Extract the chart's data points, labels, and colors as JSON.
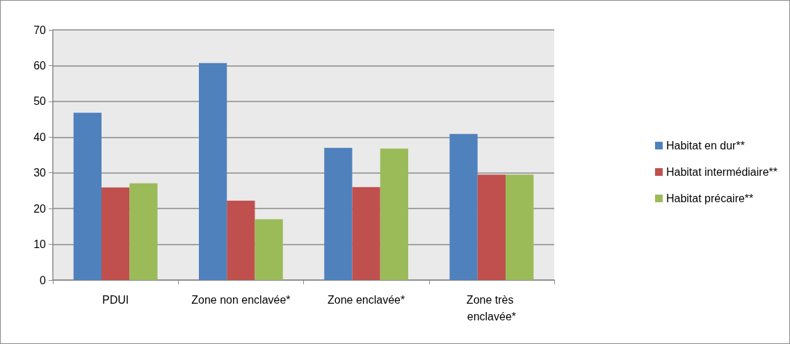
{
  "chart_data": {
    "type": "bar",
    "categories": [
      "PDUI",
      "Zone non enclavée*",
      "Zone enclavée*",
      "Zone très enclavée*"
    ],
    "series": [
      {
        "name": "Habitat en dur**",
        "color": "#4f81bd",
        "values": [
          46.8,
          60.7,
          37.0,
          40.9
        ]
      },
      {
        "name": "Habitat intermédiaire**",
        "color": "#c0504d",
        "values": [
          25.9,
          22.2,
          26.0,
          29.5
        ]
      },
      {
        "name": "Habitat précaire**",
        "color": "#9bbb59",
        "values": [
          27.1,
          17.0,
          36.8,
          29.5
        ]
      }
    ],
    "ylim": [
      0,
      70
    ],
    "yticks": [
      0,
      10,
      20,
      30,
      40,
      50,
      60,
      70
    ],
    "grid": "y",
    "legend": "right"
  }
}
